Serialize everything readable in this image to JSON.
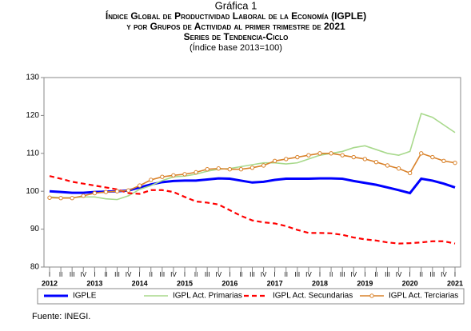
{
  "chart_data": {
    "type": "line",
    "label": "Gráfica 1",
    "title": "Índice Global de Productividad Laboral de la Economía (IGPLE)",
    "subtitle": "y por Grupos de Actividad al primer trimestre de 2021",
    "series_note": "Series de Tendencia-Ciclo",
    "base_note": "(Índice base 2013=100)",
    "source": "Fuente: INEGI.",
    "categories": [
      "I",
      "II",
      "III",
      "IV",
      "I",
      "II",
      "III",
      "IV",
      "I",
      "II",
      "III",
      "IV",
      "I",
      "II",
      "III",
      "IV",
      "I",
      "II",
      "III",
      "IV",
      "I",
      "II",
      "III",
      "IV",
      "I",
      "II",
      "III",
      "IV",
      "I",
      "II",
      "III",
      "IV",
      "I",
      "II",
      "III",
      "IV",
      "I"
    ],
    "years": [
      "2012",
      "2013",
      "2014",
      "2015",
      "2016",
      "2017",
      "2018",
      "2019",
      "2020",
      "2021"
    ],
    "ylim": [
      80,
      130
    ],
    "yticks": [
      80,
      90,
      100,
      110,
      120,
      130
    ],
    "series": [
      {
        "name": "IGPLE",
        "color": "#0000ff",
        "style": "solid",
        "values": [
          100.0,
          99.8,
          99.6,
          99.6,
          99.8,
          99.9,
          100.0,
          100.2,
          101.0,
          101.8,
          102.4,
          102.7,
          102.8,
          102.8,
          103.1,
          103.4,
          103.3,
          102.8,
          102.3,
          102.5,
          103.0,
          103.3,
          103.3,
          103.3,
          103.4,
          103.4,
          103.3,
          102.7,
          102.2,
          101.7,
          101.0,
          100.3,
          99.5,
          103.3,
          102.8,
          102.0,
          101.0
        ]
      },
      {
        "name": "IGPL Act. Primarias",
        "color": "#a8d98c",
        "style": "solid",
        "values": [
          98.5,
          98.3,
          98.3,
          98.5,
          98.5,
          98.0,
          97.8,
          98.8,
          100.5,
          101.5,
          102.8,
          103.8,
          104.0,
          104.5,
          105.3,
          105.8,
          106.0,
          106.5,
          107.0,
          107.5,
          107.5,
          107.2,
          107.5,
          108.5,
          109.5,
          110.0,
          110.5,
          111.5,
          112.0,
          111.0,
          110.0,
          109.5,
          110.5,
          120.5,
          119.5,
          117.5,
          115.5
        ]
      },
      {
        "name": "IGPL Act. Secundarias",
        "color": "#ff0000",
        "style": "dashed",
        "values": [
          104.0,
          103.3,
          102.5,
          102.0,
          101.5,
          101.0,
          100.5,
          99.5,
          99.3,
          100.3,
          100.3,
          99.8,
          98.5,
          97.3,
          97.0,
          96.5,
          95.0,
          93.5,
          92.3,
          91.8,
          91.5,
          90.8,
          89.8,
          89.0,
          89.0,
          88.9,
          88.5,
          87.8,
          87.3,
          87.0,
          86.5,
          86.2,
          86.3,
          86.5,
          86.8,
          86.8,
          86.2
        ]
      },
      {
        "name": "IGPL Act. Terciarias",
        "color": "#d9822b",
        "style": "markers",
        "values": [
          98.3,
          98.2,
          98.2,
          98.8,
          99.5,
          99.8,
          100.0,
          100.2,
          101.5,
          103.0,
          103.8,
          104.2,
          104.5,
          105.0,
          105.8,
          106.0,
          105.8,
          105.8,
          106.2,
          106.8,
          108.0,
          108.5,
          109.0,
          109.5,
          110.0,
          110.0,
          109.5,
          109.0,
          108.5,
          107.7,
          106.8,
          106.0,
          104.8,
          110.0,
          109.0,
          108.0,
          107.5
        ]
      }
    ]
  }
}
